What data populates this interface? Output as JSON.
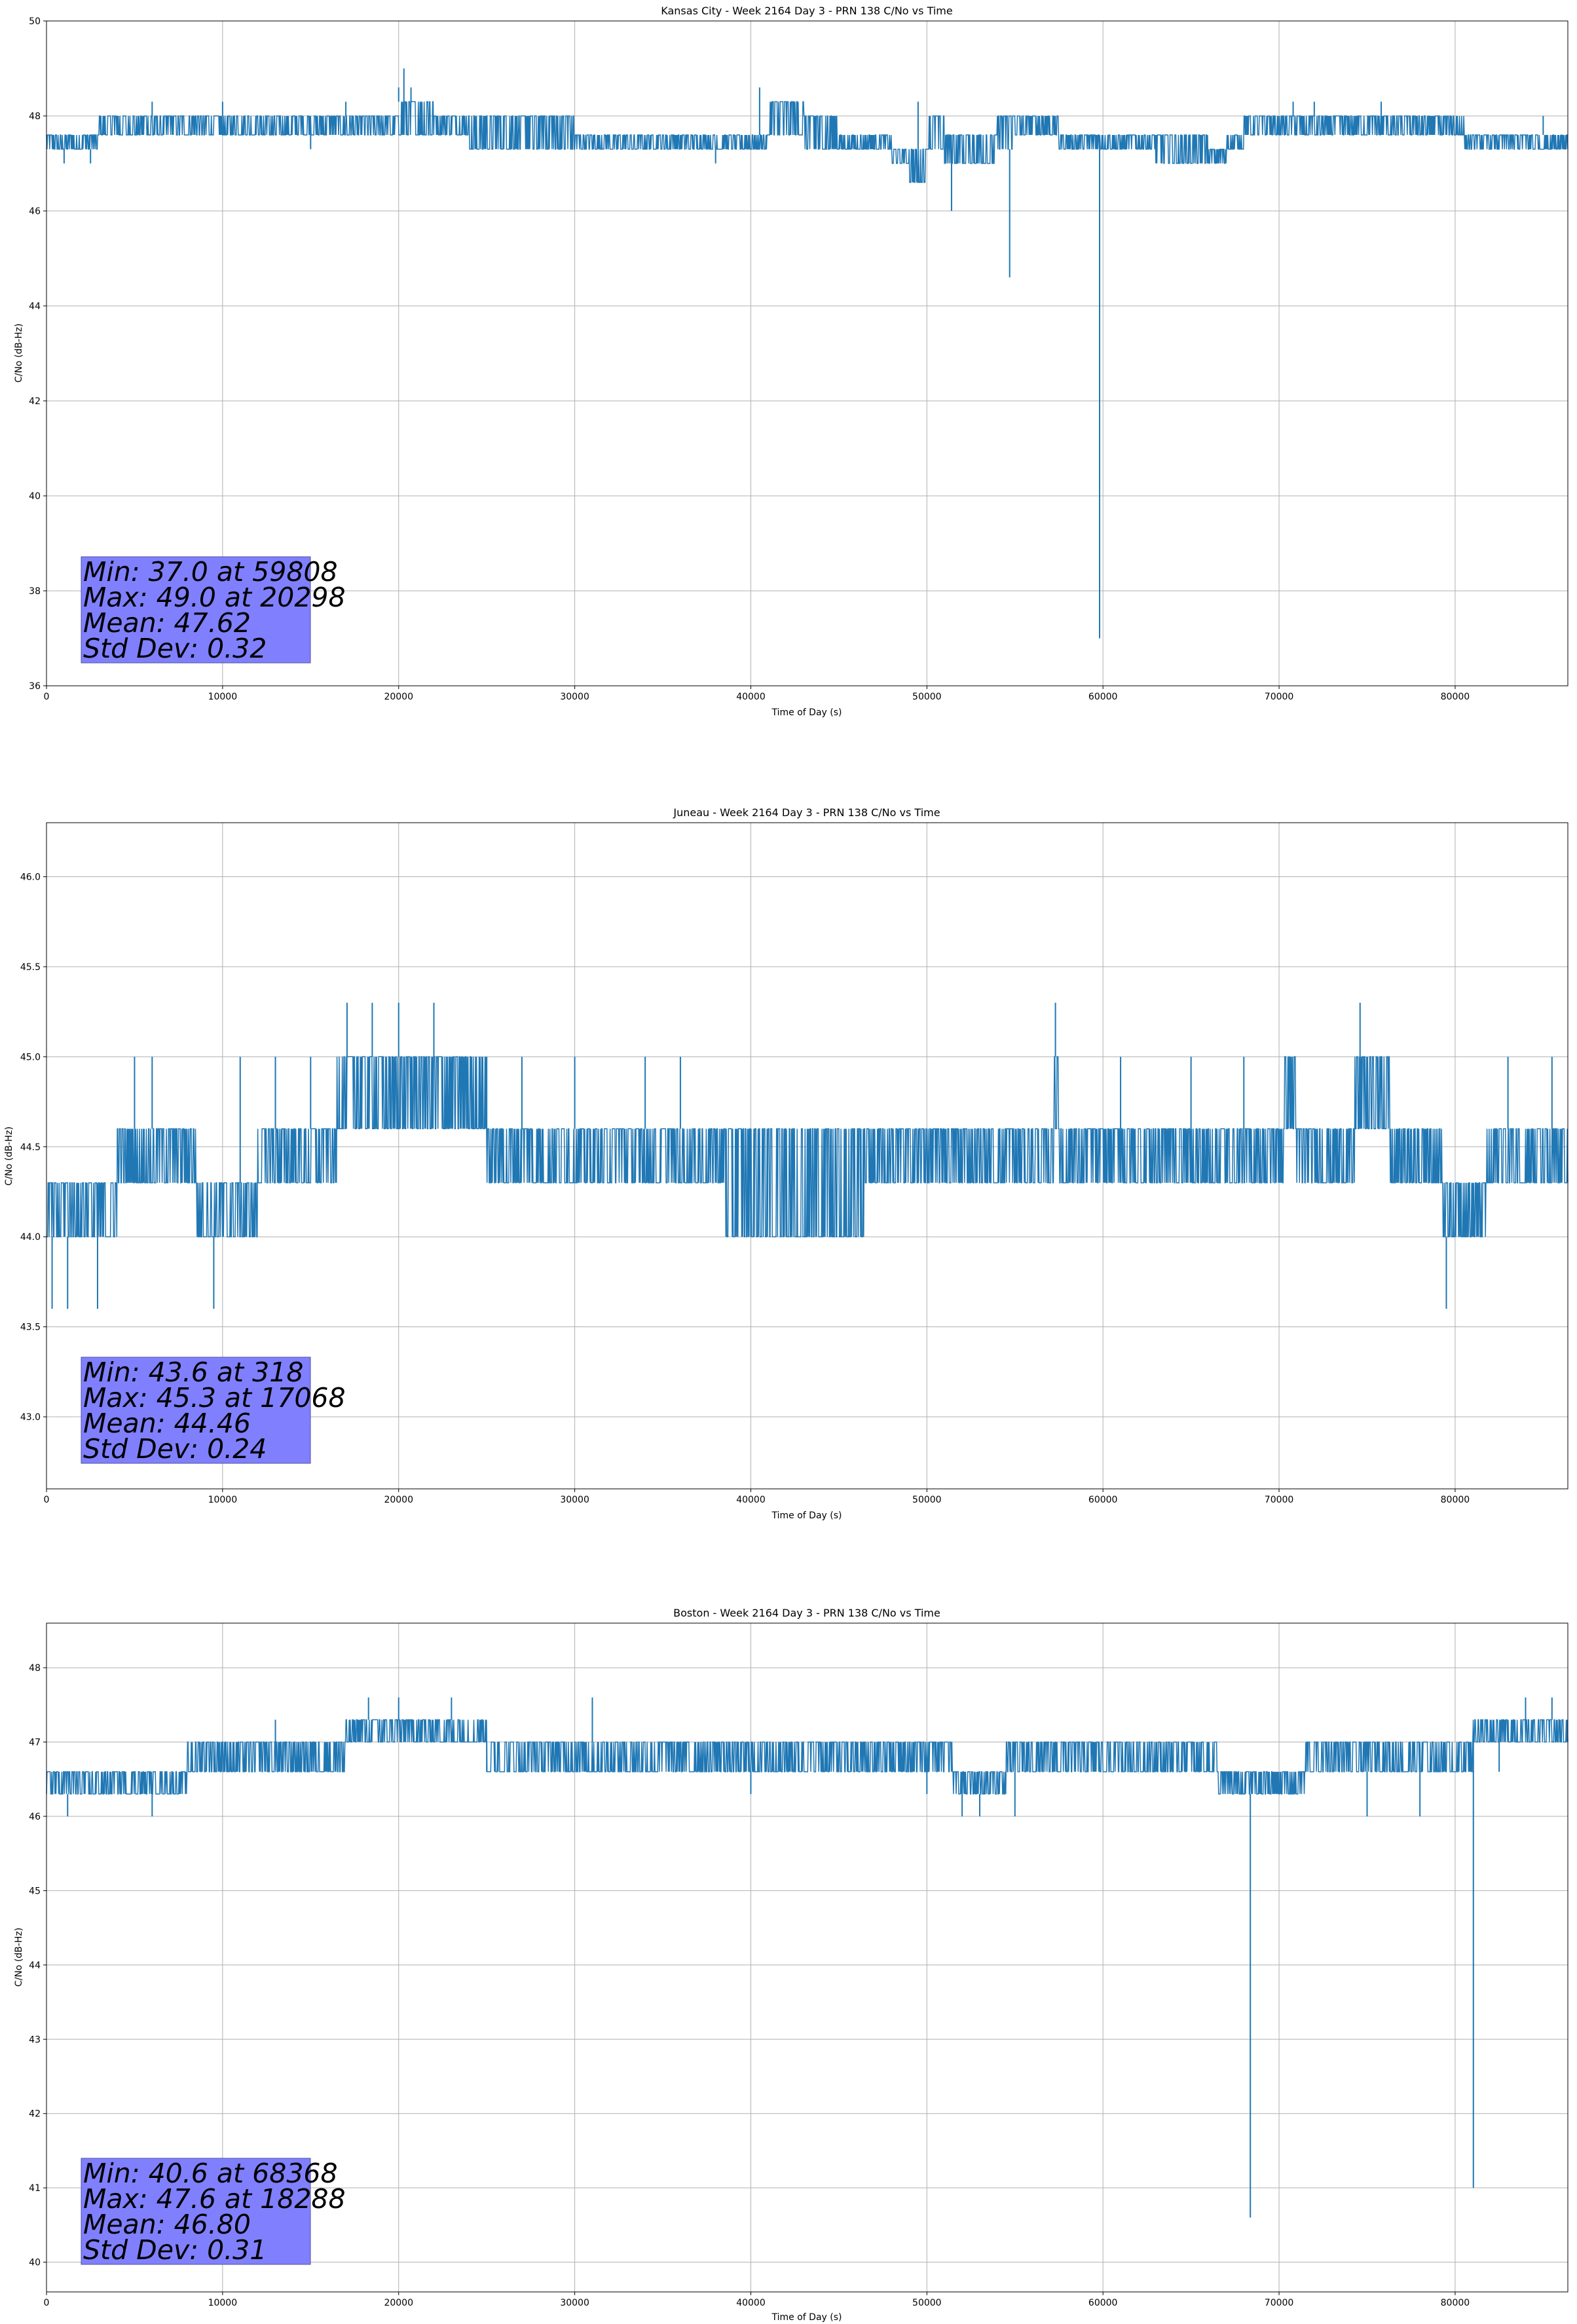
{
  "chart_data": [
    {
      "type": "line",
      "title": "Kansas City - Week 2164 Day 3 - PRN 138 C/No vs Time",
      "xlabel": "Time of Day (s)",
      "ylabel": "C/No (dB-Hz)",
      "xlim": [
        0,
        86400
      ],
      "ylim": [
        36,
        50
      ],
      "xticks": [
        0,
        10000,
        20000,
        30000,
        40000,
        50000,
        60000,
        70000,
        80000
      ],
      "yticks": [
        36,
        38,
        40,
        42,
        44,
        46,
        48,
        50
      ],
      "ytick_labels": [
        "36",
        "38",
        "40",
        "42",
        "44",
        "46",
        "48",
        "50"
      ],
      "grid": true,
      "series_color": "#1f77b4",
      "stats": [
        "Min: 37.0 at 59808",
        "Max: 49.0 at 20298",
        "Mean: 47.62",
        "Std Dev: 0.32"
      ],
      "baseline": [
        [
          0,
          47.3,
          47.6
        ],
        [
          2000,
          47.3,
          47.6
        ],
        [
          3000,
          47.6,
          48.0
        ],
        [
          15000,
          47.6,
          48.0
        ],
        [
          20000,
          47.6,
          48.3
        ],
        [
          22000,
          47.6,
          48.0
        ],
        [
          24000,
          47.3,
          48.0
        ],
        [
          30000,
          47.3,
          47.6
        ],
        [
          40000,
          47.3,
          47.6
        ],
        [
          41000,
          47.6,
          48.3
        ],
        [
          43000,
          47.3,
          48.0
        ],
        [
          45000,
          47.3,
          47.6
        ],
        [
          48000,
          47.0,
          47.3
        ],
        [
          49000,
          46.6,
          47.3
        ],
        [
          50000,
          47.3,
          48.0
        ],
        [
          51000,
          47.0,
          47.6
        ],
        [
          54000,
          47.3,
          48.0
        ],
        [
          55000,
          47.6,
          48.0
        ],
        [
          57000,
          47.6,
          48.0
        ],
        [
          57500,
          47.3,
          47.6
        ],
        [
          63000,
          47.0,
          47.6
        ],
        [
          66000,
          47.0,
          47.3
        ],
        [
          67000,
          47.3,
          47.6
        ],
        [
          68000,
          47.6,
          48.0
        ],
        [
          80000,
          47.6,
          48.0
        ],
        [
          80500,
          47.3,
          47.6
        ],
        [
          86400,
          47.3,
          47.6
        ]
      ],
      "spikes": [
        [
          1000,
          47.0
        ],
        [
          2500,
          47.0
        ],
        [
          6000,
          48.3
        ],
        [
          10000,
          48.3
        ],
        [
          15000,
          47.3
        ],
        [
          17000,
          48.3
        ],
        [
          20000,
          48.6
        ],
        [
          20298,
          49.0
        ],
        [
          20700,
          48.6
        ],
        [
          38000,
          47.0
        ],
        [
          40500,
          48.6
        ],
        [
          47000,
          47.3
        ],
        [
          49500,
          48.3
        ],
        [
          51400,
          46.0
        ],
        [
          54700,
          44.6
        ],
        [
          59808,
          37.0
        ],
        [
          70800,
          48.3
        ],
        [
          72000,
          48.3
        ],
        [
          75800,
          48.3
        ],
        [
          85000,
          48.0
        ]
      ]
    },
    {
      "type": "line",
      "title": "Juneau - Week 2164 Day 3 - PRN 138 C/No vs Time",
      "xlabel": "Time of Day (s)",
      "ylabel": "C/No (dB-Hz)",
      "xlim": [
        0,
        86400
      ],
      "ylim": [
        42.6,
        46.3
      ],
      "xticks": [
        0,
        10000,
        20000,
        30000,
        40000,
        50000,
        60000,
        70000,
        80000
      ],
      "yticks": [
        43.0,
        43.5,
        44.0,
        44.5,
        45.0,
        45.5,
        46.0
      ],
      "ytick_labels": [
        "43.0",
        "43.5",
        "44.0",
        "44.5",
        "45.0",
        "45.5",
        "46.0"
      ],
      "grid": true,
      "series_color": "#1f77b4",
      "stats": [
        "Min: 43.6 at 318",
        "Max: 45.3 at 17068",
        "Mean: 44.46",
        "Std Dev: 0.24"
      ],
      "baseline": [
        [
          0,
          44.0,
          44.3
        ],
        [
          3500,
          44.0,
          44.3
        ],
        [
          4000,
          44.3,
          44.6
        ],
        [
          8000,
          44.3,
          44.6
        ],
        [
          8500,
          44.0,
          44.3
        ],
        [
          11500,
          44.0,
          44.3
        ],
        [
          12000,
          44.3,
          44.6
        ],
        [
          16000,
          44.3,
          44.6
        ],
        [
          16500,
          44.6,
          45.0
        ],
        [
          24500,
          44.6,
          45.0
        ],
        [
          25000,
          44.3,
          44.6
        ],
        [
          38000,
          44.3,
          44.6
        ],
        [
          38500,
          44.0,
          44.6
        ],
        [
          46000,
          44.0,
          44.6
        ],
        [
          46500,
          44.3,
          44.6
        ],
        [
          57000,
          44.3,
          44.6
        ],
        [
          57200,
          44.6,
          45.0
        ],
        [
          57500,
          44.3,
          44.6
        ],
        [
          70000,
          44.3,
          44.6
        ],
        [
          70300,
          44.6,
          45.0
        ],
        [
          71000,
          44.3,
          44.6
        ],
        [
          74000,
          44.3,
          44.6
        ],
        [
          74300,
          44.6,
          45.0
        ],
        [
          76000,
          44.6,
          45.0
        ],
        [
          76300,
          44.3,
          44.6
        ],
        [
          79000,
          44.3,
          44.6
        ],
        [
          79300,
          44.0,
          44.3
        ],
        [
          81500,
          44.0,
          44.3
        ],
        [
          81800,
          44.3,
          44.6
        ],
        [
          86400,
          44.3,
          44.6
        ]
      ],
      "spikes": [
        [
          318,
          43.6
        ],
        [
          1200,
          43.6
        ],
        [
          2900,
          43.6
        ],
        [
          5000,
          45.0
        ],
        [
          6000,
          45.0
        ],
        [
          9500,
          43.6
        ],
        [
          11000,
          45.0
        ],
        [
          13000,
          45.0
        ],
        [
          15000,
          45.0
        ],
        [
          17068,
          45.3
        ],
        [
          18500,
          45.3
        ],
        [
          20000,
          45.3
        ],
        [
          22000,
          45.3
        ],
        [
          25000,
          45.0
        ],
        [
          27000,
          45.0
        ],
        [
          30000,
          45.0
        ],
        [
          34000,
          45.0
        ],
        [
          36000,
          45.0
        ],
        [
          57300,
          45.3
        ],
        [
          61000,
          45.0
        ],
        [
          65000,
          45.0
        ],
        [
          68000,
          45.0
        ],
        [
          74600,
          45.3
        ],
        [
          76000,
          45.0
        ],
        [
          79500,
          43.6
        ],
        [
          83000,
          45.0
        ],
        [
          85500,
          45.0
        ]
      ]
    },
    {
      "type": "line",
      "title": "Boston - Week 2164 Day 3 - PRN 138 C/No vs Time",
      "xlabel": "Time of Day (s)",
      "ylabel": "C/No (dB-Hz)",
      "xlim": [
        0,
        86400
      ],
      "ylim": [
        39.6,
        48.6
      ],
      "xticks": [
        0,
        10000,
        20000,
        30000,
        40000,
        50000,
        60000,
        70000,
        80000
      ],
      "yticks": [
        40,
        41,
        42,
        43,
        44,
        45,
        46,
        47,
        48
      ],
      "ytick_labels": [
        "40",
        "41",
        "42",
        "43",
        "44",
        "45",
        "46",
        "47",
        "48"
      ],
      "grid": true,
      "series_color": "#1f77b4",
      "stats": [
        "Min: 40.6 at 68368",
        "Max: 47.6 at 18288",
        "Mean: 46.80",
        "Std Dev: 0.31"
      ],
      "baseline": [
        [
          0,
          46.3,
          46.6
        ],
        [
          7500,
          46.3,
          46.6
        ],
        [
          8000,
          46.6,
          47.0
        ],
        [
          16500,
          46.6,
          47.0
        ],
        [
          17000,
          47.0,
          47.3
        ],
        [
          24500,
          47.0,
          47.3
        ],
        [
          25000,
          46.6,
          47.0
        ],
        [
          42000,
          46.6,
          47.0
        ],
        [
          44000,
          46.6,
          47.0
        ],
        [
          51000,
          46.6,
          47.0
        ],
        [
          51500,
          46.3,
          46.6
        ],
        [
          54000,
          46.3,
          46.6
        ],
        [
          54500,
          46.6,
          47.0
        ],
        [
          66000,
          46.6,
          47.0
        ],
        [
          66500,
          46.3,
          46.6
        ],
        [
          71000,
          46.3,
          46.6
        ],
        [
          71500,
          46.6,
          47.0
        ],
        [
          80500,
          46.6,
          47.0
        ],
        [
          81000,
          47.0,
          47.3
        ],
        [
          86400,
          47.0,
          47.3
        ]
      ],
      "spikes": [
        [
          1200,
          46.0
        ],
        [
          6000,
          46.0
        ],
        [
          9000,
          47.0
        ],
        [
          13000,
          47.3
        ],
        [
          18288,
          47.6
        ],
        [
          20000,
          47.6
        ],
        [
          23000,
          47.6
        ],
        [
          25000,
          46.6
        ],
        [
          31000,
          47.6
        ],
        [
          40000,
          46.3
        ],
        [
          50000,
          46.3
        ],
        [
          52000,
          46.0
        ],
        [
          53000,
          46.0
        ],
        [
          55000,
          46.0
        ],
        [
          68368,
          40.6
        ],
        [
          69000,
          46.3
        ],
        [
          75000,
          46.0
        ],
        [
          78000,
          46.0
        ],
        [
          81035,
          41.0
        ],
        [
          82500,
          46.6
        ],
        [
          84000,
          47.6
        ],
        [
          85500,
          47.6
        ]
      ]
    }
  ]
}
